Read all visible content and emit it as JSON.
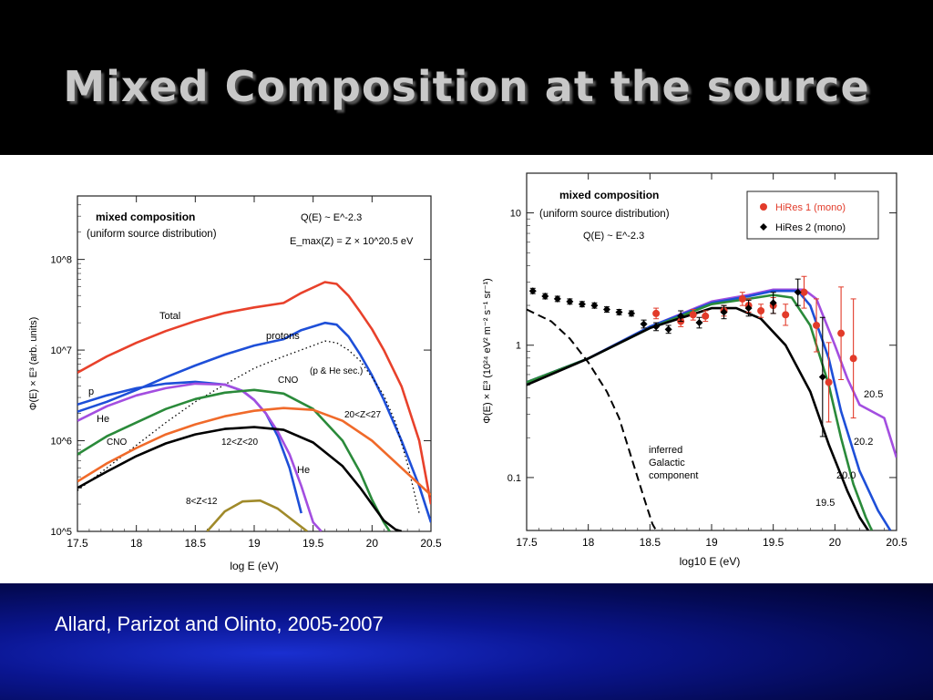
{
  "slide": {
    "title": "Mixed Composition at the source",
    "citation": "Allard, Parizot and Olinto, 2005-2007"
  },
  "colors": {
    "title": "#c8c8c8",
    "band_blue": "#0a1590",
    "total": "#e8412b",
    "protons": "#1e4fd8",
    "cno": "#2a8a3a",
    "he": "#a34ee0",
    "z20_27": "#f06a2a",
    "z12_20": "#000000",
    "z8_12": "#a08a2a",
    "hires1": "#e23b2a",
    "hires2": "#000000"
  },
  "chart_data": [
    {
      "type": "line",
      "title": "mixed composition",
      "subtitle": "(uniform source distribution)",
      "formula_1": "Q(E) ~ E^-2.3",
      "formula_2": "E_max(Z) = Z × 10^20.5 eV",
      "xlabel": "log E (eV)",
      "ylabel": "Φ(E) × E³ (arb. units)",
      "x_ticks": [
        "17.5",
        "18",
        "18.5",
        "19",
        "19.5",
        "20",
        "20.5"
      ],
      "y_ticks": [
        "10^5",
        "10^6",
        "10^7",
        "10^8"
      ],
      "xlim": [
        17.5,
        20.5
      ],
      "ylim_log10": [
        5,
        8.7
      ],
      "series": [
        {
          "name": "Total",
          "color": "#e8412b",
          "style": "solid",
          "x": [
            17.5,
            17.75,
            18,
            18.25,
            18.5,
            18.75,
            19,
            19.25,
            19.4,
            19.6,
            19.7,
            19.8,
            19.9,
            20,
            20.1,
            20.25,
            20.4,
            20.5
          ],
          "y": [
            6.75,
            6.93,
            7.08,
            7.21,
            7.32,
            7.41,
            7.47,
            7.52,
            7.63,
            7.75,
            7.73,
            7.6,
            7.42,
            7.23,
            7.0,
            6.6,
            6.0,
            5.3
          ]
        },
        {
          "name": "protons",
          "color": "#1e4fd8",
          "style": "solid",
          "x": [
            17.5,
            17.75,
            18,
            18.25,
            18.5,
            18.75,
            19,
            19.25,
            19.4,
            19.6,
            19.7,
            19.8,
            19.9,
            20,
            20.1,
            20.25,
            20.4,
            20.5
          ],
          "y": [
            6.32,
            6.43,
            6.56,
            6.7,
            6.83,
            6.95,
            7.05,
            7.12,
            7.22,
            7.3,
            7.28,
            7.15,
            6.95,
            6.72,
            6.45,
            6.0,
            5.5,
            5.1
          ]
        },
        {
          "name": "(p & He sec.)",
          "color": "#000000",
          "style": "dotted",
          "x": [
            17.5,
            17.75,
            18,
            18.25,
            18.5,
            18.75,
            19,
            19.25,
            19.5,
            19.6,
            19.7,
            19.8,
            19.9,
            20,
            20.1,
            20.2,
            20.3,
            20.4
          ],
          "y": [
            5.45,
            5.7,
            5.95,
            6.2,
            6.43,
            6.62,
            6.8,
            6.93,
            7.05,
            7.1,
            7.08,
            7.0,
            6.88,
            6.7,
            6.5,
            6.2,
            5.75,
            5.2
          ]
        },
        {
          "name": "p",
          "color": "#1e4fd8",
          "style": "solid",
          "x": [
            17.5,
            17.75,
            18,
            18.25,
            18.5,
            18.75,
            18.9,
            19.0,
            19.1,
            19.2,
            19.3,
            19.4
          ],
          "y": [
            6.4,
            6.5,
            6.58,
            6.63,
            6.65,
            6.62,
            6.55,
            6.45,
            6.3,
            6.05,
            5.7,
            5.2
          ]
        },
        {
          "name": "He",
          "color": "#a34ee0",
          "style": "solid",
          "x": [
            17.5,
            17.75,
            18,
            18.25,
            18.5,
            18.75,
            18.9,
            19.0,
            19.1,
            19.2,
            19.3,
            19.4,
            19.5,
            19.57
          ],
          "y": [
            6.22,
            6.38,
            6.5,
            6.58,
            6.63,
            6.62,
            6.55,
            6.45,
            6.3,
            6.1,
            5.85,
            5.5,
            5.1,
            5.0
          ]
        },
        {
          "name": "CNO",
          "color": "#2a8a3a",
          "style": "solid",
          "x": [
            17.5,
            17.75,
            18,
            18.25,
            18.5,
            18.75,
            19,
            19.25,
            19.5,
            19.75,
            19.9,
            20,
            20.1,
            20.15
          ],
          "y": [
            5.85,
            6.05,
            6.2,
            6.35,
            6.46,
            6.53,
            6.56,
            6.52,
            6.35,
            6.0,
            5.65,
            5.35,
            5.1,
            5.0
          ]
        },
        {
          "name": "20<Z<27",
          "color": "#f06a2a",
          "style": "solid",
          "x": [
            17.5,
            17.75,
            18,
            18.25,
            18.5,
            18.75,
            19,
            19.25,
            19.5,
            19.75,
            20,
            20.25,
            20.5
          ],
          "y": [
            5.55,
            5.75,
            5.92,
            6.07,
            6.18,
            6.27,
            6.33,
            6.36,
            6.34,
            6.22,
            6.0,
            5.7,
            5.4
          ]
        },
        {
          "name": "12<Z<20",
          "color": "#000000",
          "style": "solid",
          "x": [
            17.5,
            17.75,
            18,
            18.25,
            18.5,
            18.75,
            19,
            19.25,
            19.5,
            19.75,
            19.9,
            20,
            20.1,
            20.2,
            20.25
          ],
          "y": [
            5.48,
            5.66,
            5.83,
            5.97,
            6.07,
            6.13,
            6.15,
            6.12,
            5.98,
            5.72,
            5.48,
            5.3,
            5.12,
            5.02,
            5.0
          ]
        },
        {
          "name": "8<Z<12",
          "color": "#a08a2a",
          "style": "solid",
          "x": [
            18.6,
            18.75,
            18.9,
            19.05,
            19.2,
            19.35,
            19.45
          ],
          "y": [
            5.0,
            5.22,
            5.33,
            5.34,
            5.25,
            5.1,
            5.0
          ]
        }
      ]
    },
    {
      "type": "line",
      "title": "mixed composition",
      "subtitle": "(uniform source distribution)",
      "formula_1": "Q(E) ~ E^-2.3",
      "xlabel": "log10 E (eV)",
      "ylabel": "Φ(E) × E³ (10²⁴ eV² m⁻² s⁻¹ sr⁻¹)",
      "x_ticks": [
        "17.5",
        "18",
        "18.5",
        "19",
        "19.5",
        "20",
        "20.5"
      ],
      "y_ticks": [
        "0.1",
        "1",
        "10"
      ],
      "xlim": [
        17.5,
        20.5
      ],
      "ylim_log10": [
        -1.4,
        1.3
      ],
      "legend": {
        "position": "top-right",
        "entries": [
          "HiRes 1 (mono)",
          "HiRes 2 (mono)"
        ]
      },
      "annotations": [
        "inferred Galactic component",
        "19.5",
        "20.0",
        "20.2",
        "20.5"
      ],
      "series": [
        {
          "name": "20.5",
          "color": "#a34ee0",
          "style": "solid",
          "x": [
            17.5,
            18.0,
            18.5,
            19.0,
            19.3,
            19.5,
            19.75,
            19.85,
            20.0,
            20.1,
            20.2,
            20.4,
            20.5
          ],
          "y": [
            -0.28,
            -0.1,
            0.14,
            0.33,
            0.38,
            0.42,
            0.42,
            0.35,
            0.0,
            -0.25,
            -0.45,
            -0.55,
            -0.85
          ]
        },
        {
          "name": "20.2",
          "color": "#1e4fd8",
          "style": "solid",
          "x": [
            17.5,
            18.0,
            18.5,
            19.0,
            19.3,
            19.5,
            19.7,
            19.8,
            19.95,
            20.05,
            20.2,
            20.35,
            20.45
          ],
          "y": [
            -0.28,
            -0.1,
            0.14,
            0.32,
            0.37,
            0.41,
            0.41,
            0.3,
            -0.1,
            -0.5,
            -0.95,
            -1.25,
            -1.4
          ]
        },
        {
          "name": "20.0",
          "color": "#2a8a3a",
          "style": "solid",
          "x": [
            17.5,
            18.0,
            18.5,
            19.0,
            19.3,
            19.5,
            19.65,
            19.8,
            19.95,
            20.05,
            20.15,
            20.25,
            20.3
          ],
          "y": [
            -0.28,
            -0.1,
            0.13,
            0.31,
            0.35,
            0.38,
            0.36,
            0.15,
            -0.3,
            -0.7,
            -1.05,
            -1.3,
            -1.4
          ]
        },
        {
          "name": "19.5",
          "color": "#000000",
          "style": "solid",
          "x": [
            17.5,
            18.0,
            18.5,
            19.0,
            19.2,
            19.4,
            19.6,
            19.8,
            19.95,
            20.1,
            20.2,
            20.27
          ],
          "y": [
            -0.3,
            -0.1,
            0.13,
            0.28,
            0.28,
            0.2,
            0.0,
            -0.35,
            -0.75,
            -1.1,
            -1.3,
            -1.4
          ]
        },
        {
          "name": "inferred Galactic component",
          "color": "#000000",
          "style": "dashed",
          "x": [
            17.5,
            17.7,
            17.85,
            18.0,
            18.15,
            18.25,
            18.35,
            18.45,
            18.52,
            18.55
          ],
          "y": [
            0.27,
            0.18,
            0.05,
            -0.13,
            -0.35,
            -0.55,
            -0.85,
            -1.15,
            -1.35,
            -1.4
          ]
        },
        {
          "name": "HiRes 1 (mono)",
          "color": "#e23b2a",
          "style": "points",
          "x": [
            18.55,
            18.75,
            18.85,
            18.95,
            19.1,
            19.25,
            19.3,
            19.4,
            19.5,
            19.6,
            19.75,
            19.85,
            19.95,
            20.05,
            20.15
          ],
          "y": [
            0.24,
            0.18,
            0.23,
            0.22,
            0.26,
            0.35,
            0.3,
            0.26,
            0.3,
            0.23,
            0.4,
            0.15,
            -0.28,
            0.09,
            -0.1
          ],
          "err": [
            0.04,
            0.04,
            0.04,
            0.04,
            0.04,
            0.05,
            0.05,
            0.05,
            0.06,
            0.08,
            0.12,
            0.2,
            0.3,
            0.35,
            0.45
          ]
        },
        {
          "name": "HiRes 2 (mono)",
          "color": "#000000",
          "style": "points",
          "x": [
            17.55,
            17.65,
            17.75,
            17.85,
            17.95,
            18.05,
            18.15,
            18.25,
            18.35,
            18.45,
            18.55,
            18.65,
            18.75,
            18.9,
            19.1,
            19.3,
            19.5,
            19.7,
            19.9
          ],
          "y": [
            0.41,
            0.37,
            0.35,
            0.33,
            0.31,
            0.3,
            0.27,
            0.25,
            0.24,
            0.16,
            0.14,
            0.12,
            0.22,
            0.17,
            0.25,
            0.28,
            0.32,
            0.4,
            -0.24
          ],
          "err": [
            0.02,
            0.02,
            0.02,
            0.02,
            0.02,
            0.02,
            0.02,
            0.02,
            0.02,
            0.03,
            0.03,
            0.03,
            0.04,
            0.04,
            0.05,
            0.06,
            0.08,
            0.1,
            0.45
          ]
        }
      ]
    }
  ]
}
